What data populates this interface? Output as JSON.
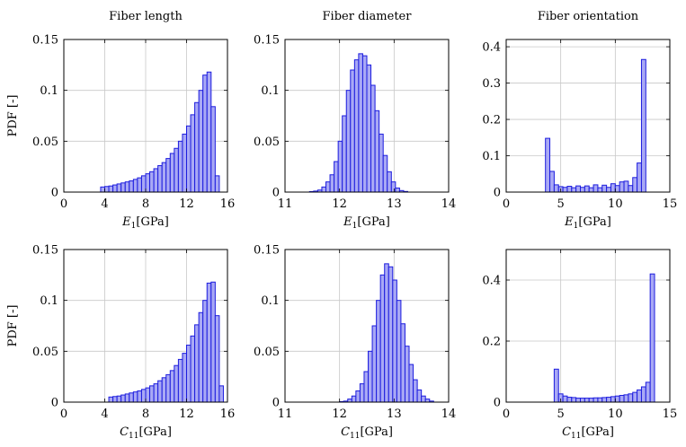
{
  "chart_data": [
    {
      "type": "bar",
      "title": "Fiber length",
      "xlabel": "E1 [GPa]",
      "xlabel_var": "E",
      "xlabel_sub": "1",
      "xlabel_unit": "[GPa]",
      "ylabel": "PDF [-]",
      "xlim": [
        0,
        16
      ],
      "ylim": [
        0,
        0.15
      ],
      "xticks": [
        "0",
        "4",
        "8",
        "12",
        "16"
      ],
      "yticks": [
        "0",
        "0.05",
        "0.1",
        "0.15"
      ],
      "grid": true,
      "bins_start": 3.6,
      "bin_width": 0.4,
      "values": [
        0.005,
        0.0055,
        0.006,
        0.007,
        0.008,
        0.009,
        0.01,
        0.011,
        0.0125,
        0.014,
        0.016,
        0.018,
        0.02,
        0.023,
        0.026,
        0.029,
        0.033,
        0.038,
        0.043,
        0.05,
        0.057,
        0.065,
        0.076,
        0.088,
        0.1,
        0.115,
        0.118,
        0.084,
        0.016
      ]
    },
    {
      "type": "bar",
      "title": "Fiber diameter",
      "xlabel": "E1 [GPa]",
      "xlabel_var": "E",
      "xlabel_sub": "1",
      "xlabel_unit": "[GPa]",
      "ylabel": "",
      "xlim": [
        11,
        14
      ],
      "ylim": [
        0,
        0.15
      ],
      "xticks": [
        "11",
        "12",
        "13",
        "14"
      ],
      "yticks": [
        "0",
        "0.05",
        "0.1",
        "0.15"
      ],
      "grid": true,
      "bins_start": 11.45,
      "bin_width": 0.075,
      "values": [
        0.0005,
        0.001,
        0.002,
        0.005,
        0.01,
        0.017,
        0.03,
        0.05,
        0.075,
        0.1,
        0.12,
        0.13,
        0.136,
        0.134,
        0.125,
        0.105,
        0.08,
        0.057,
        0.036,
        0.02,
        0.01,
        0.004,
        0.0015,
        0.0006
      ]
    },
    {
      "type": "bar",
      "title": "Fiber orientation",
      "xlabel": "E1 [GPa]",
      "xlabel_var": "E",
      "xlabel_sub": "1",
      "xlabel_unit": "[GPa]",
      "ylabel": "",
      "xlim": [
        0,
        15
      ],
      "ylim": [
        0,
        0.42
      ],
      "xticks": [
        "0",
        "5",
        "10",
        "15"
      ],
      "yticks": [
        "0",
        "0.1",
        "0.2",
        "0.3",
        "0.4"
      ],
      "grid": true,
      "bins_start": 3.6,
      "bin_width": 0.4,
      "values": [
        0.148,
        0.057,
        0.02,
        0.015,
        0.013,
        0.016,
        0.012,
        0.017,
        0.013,
        0.017,
        0.012,
        0.02,
        0.012,
        0.019,
        0.013,
        0.023,
        0.018,
        0.028,
        0.03,
        0.018,
        0.04,
        0.08,
        0.365
      ]
    },
    {
      "type": "bar",
      "title": "",
      "xlabel": "C11 [GPa]",
      "xlabel_var": "C",
      "xlabel_sub": "11",
      "xlabel_unit": "[GPa]",
      "ylabel": "PDF [-]",
      "xlim": [
        0,
        16
      ],
      "ylim": [
        0,
        0.15
      ],
      "xticks": [
        "0",
        "4",
        "8",
        "12",
        "16"
      ],
      "yticks": [
        "0",
        "0.05",
        "0.1",
        "0.15"
      ],
      "grid": true,
      "bins_start": 4.4,
      "bin_width": 0.4,
      "values": [
        0.005,
        0.0055,
        0.006,
        0.007,
        0.008,
        0.009,
        0.01,
        0.011,
        0.0125,
        0.014,
        0.016,
        0.018,
        0.021,
        0.024,
        0.027,
        0.031,
        0.036,
        0.042,
        0.048,
        0.056,
        0.065,
        0.076,
        0.088,
        0.1,
        0.117,
        0.118,
        0.085,
        0.016
      ]
    },
    {
      "type": "bar",
      "title": "",
      "xlabel": "C11 [GPa]",
      "xlabel_var": "C",
      "xlabel_sub": "11",
      "xlabel_unit": "[GPa]",
      "ylabel": "",
      "xlim": [
        11,
        14
      ],
      "ylim": [
        0,
        0.15
      ],
      "xticks": [
        "11",
        "12",
        "13",
        "14"
      ],
      "yticks": [
        "0",
        "0.05",
        "0.1",
        "0.15"
      ],
      "grid": true,
      "bins_start": 12.0,
      "bin_width": 0.075,
      "values": [
        0.0005,
        0.001,
        0.003,
        0.006,
        0.011,
        0.018,
        0.03,
        0.05,
        0.075,
        0.1,
        0.125,
        0.136,
        0.133,
        0.12,
        0.1,
        0.077,
        0.055,
        0.037,
        0.022,
        0.012,
        0.006,
        0.003,
        0.001
      ]
    },
    {
      "type": "bar",
      "title": "",
      "xlabel": "C11 [GPa]",
      "xlabel_var": "C",
      "xlabel_sub": "11",
      "xlabel_unit": "[GPa]",
      "ylabel": "",
      "xlim": [
        0,
        15
      ],
      "ylim": [
        0,
        0.5
      ],
      "xticks": [
        "0",
        "5",
        "10",
        "15"
      ],
      "yticks": [
        "0",
        "0.2",
        "0.4"
      ],
      "grid": true,
      "bins_start": 4.4,
      "bin_width": 0.4,
      "values": [
        0.108,
        0.027,
        0.02,
        0.016,
        0.015,
        0.013,
        0.013,
        0.013,
        0.013,
        0.014,
        0.014,
        0.015,
        0.016,
        0.018,
        0.02,
        0.022,
        0.024,
        0.027,
        0.032,
        0.04,
        0.05,
        0.065,
        0.42
      ]
    }
  ]
}
